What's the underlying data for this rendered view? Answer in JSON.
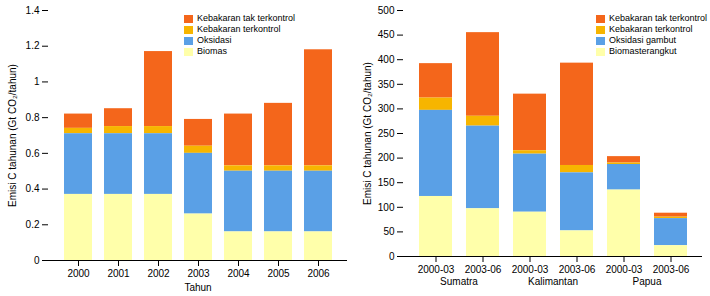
{
  "chart_data": [
    {
      "type": "bar",
      "stacked": true,
      "legend": "top",
      "ylabel": "Emisi C tahunan (Gt CO₂/tahun)",
      "xlabel": "Tahun",
      "categories": [
        "2000",
        "2001",
        "2002",
        "2003",
        "2004",
        "2005",
        "2006"
      ],
      "series": [
        {
          "name": "Kebakaran tak terkontrol",
          "color": "#f4661b",
          "values": [
            0.08,
            0.1,
            0.42,
            0.15,
            0.29,
            0.35,
            0.65
          ]
        },
        {
          "name": "Kebakaran terkontrol",
          "color": "#f7b500",
          "values": [
            0.03,
            0.04,
            0.04,
            0.04,
            0.03,
            0.03,
            0.03
          ]
        },
        {
          "name": "Oksidasi",
          "color": "#5aa0e6",
          "values": [
            0.34,
            0.34,
            0.34,
            0.34,
            0.34,
            0.34,
            0.34
          ]
        },
        {
          "name": "Biomas",
          "color": "#ffffaa",
          "values": [
            0.37,
            0.37,
            0.37,
            0.26,
            0.16,
            0.16,
            0.16
          ]
        }
      ],
      "ylim": [
        0,
        1.4
      ],
      "yticks": [
        0,
        0.2,
        0.4,
        0.6,
        0.8,
        1,
        1.2,
        1.4
      ]
    },
    {
      "type": "bar",
      "stacked": true,
      "legend": "top-right",
      "ylabel": "Emisi C tahunan (Gt CO₂/tahun)",
      "categories": [
        "2000-03",
        "2003-06",
        "2000-03",
        "2003-06",
        "2000-03",
        "2003-06"
      ],
      "category_groups": [
        "Sumatra",
        "Sumatra",
        "Kalimantan",
        "Kalimantan",
        "Papua",
        "Papua"
      ],
      "series": [
        {
          "name": "Kebakaran tak terkontrol",
          "color": "#f4661b",
          "values": [
            70,
            170,
            115,
            208,
            13,
            8
          ]
        },
        {
          "name": "Kebakaran terkontrol",
          "color": "#f7b500",
          "values": [
            25,
            20,
            7,
            15,
            3,
            3
          ]
        },
        {
          "name": "Oksidasi gambut",
          "color": "#5aa0e6",
          "values": [
            175,
            168,
            118,
            118,
            52,
            55
          ]
        },
        {
          "name": "Biomasterangkut",
          "color": "#ffffaa",
          "values": [
            122,
            97,
            90,
            52,
            135,
            22
          ]
        }
      ],
      "ylim": [
        0,
        500
      ],
      "yticks": [
        0,
        50,
        100,
        150,
        200,
        250,
        300,
        350,
        400,
        450,
        500
      ]
    }
  ]
}
